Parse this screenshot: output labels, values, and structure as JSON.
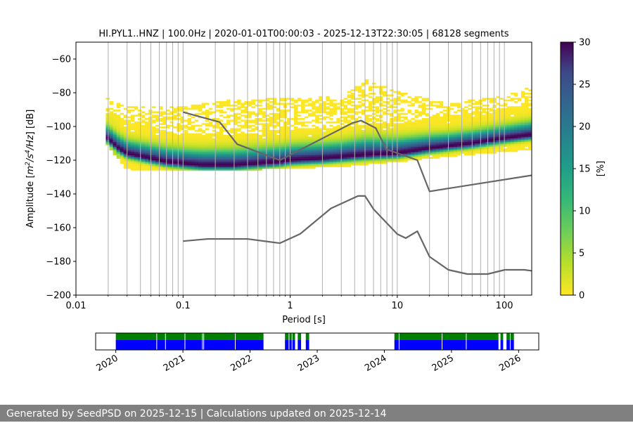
{
  "chart_data": [
    {
      "type": "heatmap",
      "title": "HI.PYL1..HNZ | 100.0Hz | 2020-01-01T00:00:03 - 2025-12-13T22:30:05 | 68128 segments",
      "xlabel": "Period [s]",
      "ylabel_parts": {
        "a": "Amplitude [",
        "b": "m",
        "c": "2",
        "d": "/s",
        "e": "4",
        "f": "/Hz",
        "g": "] [dB]"
      },
      "x_scale": "log",
      "xlim": [
        0.01,
        180
      ],
      "ylim": [
        -200,
        -50
      ],
      "x_ticks": [
        {
          "v": 0.01,
          "t": "0.01"
        },
        {
          "v": 0.1,
          "t": "0.1"
        },
        {
          "v": 1,
          "t": "1"
        },
        {
          "v": 10,
          "t": "10"
        },
        {
          "v": 100,
          "t": "100"
        }
      ],
      "y_ticks": [
        {
          "v": -60,
          "t": "−60"
        },
        {
          "v": -80,
          "t": "−80"
        },
        {
          "v": -100,
          "t": "−100"
        },
        {
          "v": -120,
          "t": "−120"
        },
        {
          "v": -140,
          "t": "−140"
        },
        {
          "v": -160,
          "t": "−160"
        },
        {
          "v": -180,
          "t": "−180"
        },
        {
          "v": -200,
          "t": "−200"
        }
      ],
      "grid": "x-major-minor",
      "colormap": "viridis_r",
      "colorbar": {
        "label": "[%]",
        "range": [
          0,
          30
        ],
        "ticks": [
          {
            "v": 0,
            "t": "0"
          },
          {
            "v": 5,
            "t": "5"
          },
          {
            "v": 10,
            "t": "10"
          },
          {
            "v": 15,
            "t": "15"
          },
          {
            "v": 20,
            "t": "20"
          },
          {
            "v": 25,
            "t": "25"
          },
          {
            "v": 30,
            "t": "30"
          }
        ]
      },
      "psd_mode": {
        "period": [
          0.019,
          0.025,
          0.03,
          0.05,
          0.07,
          0.1,
          0.15,
          0.2,
          0.3,
          0.5,
          0.8,
          1,
          2,
          5,
          10,
          20,
          50,
          100,
          180
        ],
        "db": [
          -106,
          -113,
          -116,
          -119,
          -121,
          -122,
          -123,
          -123,
          -123,
          -122,
          -121,
          -120,
          -119,
          -117,
          -116,
          -113,
          -110,
          -107,
          -105
        ]
      },
      "psd_upper_extent": {
        "period": [
          0.019,
          0.03,
          0.1,
          0.3,
          1,
          3,
          5,
          10,
          30,
          100,
          180
        ],
        "db": [
          -82,
          -88,
          -88,
          -84,
          -83,
          -82,
          -72,
          -79,
          -86,
          -82,
          -76
        ]
      },
      "psd_lower_extent": {
        "period": [
          0.019,
          0.03,
          0.1,
          0.3,
          1,
          3,
          10,
          30,
          100,
          180
        ],
        "db": [
          -110,
          -126,
          -126,
          -126,
          -125,
          -124,
          -121,
          -118,
          -115,
          -114
        ]
      },
      "series": [
        {
          "name": "",
          "color": "#666666",
          "period": [
            0.1,
            0.22,
            0.32,
            0.8,
            3.8,
            4.6,
            6.3,
            7.9,
            15.4,
            20,
            200
          ],
          "db": [
            -91.5,
            -97.4,
            -110.5,
            -120,
            -98,
            -96.5,
            -101,
            -113.5,
            -120,
            -138.5,
            -128.5
          ]
        },
        {
          "name": "",
          "color": "#666666",
          "period": [
            0.1,
            0.17,
            0.4,
            0.8,
            1.24,
            2.4,
            4.3,
            5.0,
            6.0,
            10,
            12,
            15.4,
            20,
            30,
            45,
            70,
            101,
            154,
            200
          ],
          "db": [
            -168,
            -166.7,
            -166.7,
            -169.2,
            -163.7,
            -148.6,
            -141.2,
            -141.2,
            -149,
            -163.8,
            -166.2,
            -162.1,
            -177.2,
            -185,
            -187.5,
            -187.5,
            -185,
            -185,
            -186
          ]
        }
      ]
    },
    {
      "type": "timeline",
      "x_ticks": [
        {
          "v": 2020,
          "t": "2020"
        },
        {
          "v": 2021,
          "t": "2021"
        },
        {
          "v": 2022,
          "t": "2022"
        },
        {
          "v": 2023,
          "t": "2023"
        },
        {
          "v": 2024,
          "t": "2024"
        },
        {
          "v": 2025,
          "t": "2025"
        },
        {
          "v": 2026,
          "t": "2026"
        }
      ],
      "xlim": [
        2019.7,
        2026.3
      ],
      "colors": {
        "top": "#008000",
        "bottom": "#0000ff"
      },
      "segments": [
        [
          2020.0,
          2022.2
        ],
        [
          2022.52,
          2022.62
        ],
        [
          2022.63,
          2022.67
        ],
        [
          2022.71,
          2022.76
        ],
        [
          2022.83,
          2022.88
        ],
        [
          2024.15,
          2025.7
        ],
        [
          2025.73,
          2025.77
        ],
        [
          2025.82,
          2025.87
        ],
        [
          2025.88,
          2025.93
        ]
      ],
      "gaps": [
        2020.61,
        2020.74,
        2021.03,
        2021.29,
        2021.31,
        2021.78,
        2022.58,
        2024.22,
        2024.86,
        2025.22
      ]
    }
  ],
  "footer": {
    "text": "Generated by SeedPSD on 2025-12-15 | Calculations updated on 2025-12-14"
  }
}
